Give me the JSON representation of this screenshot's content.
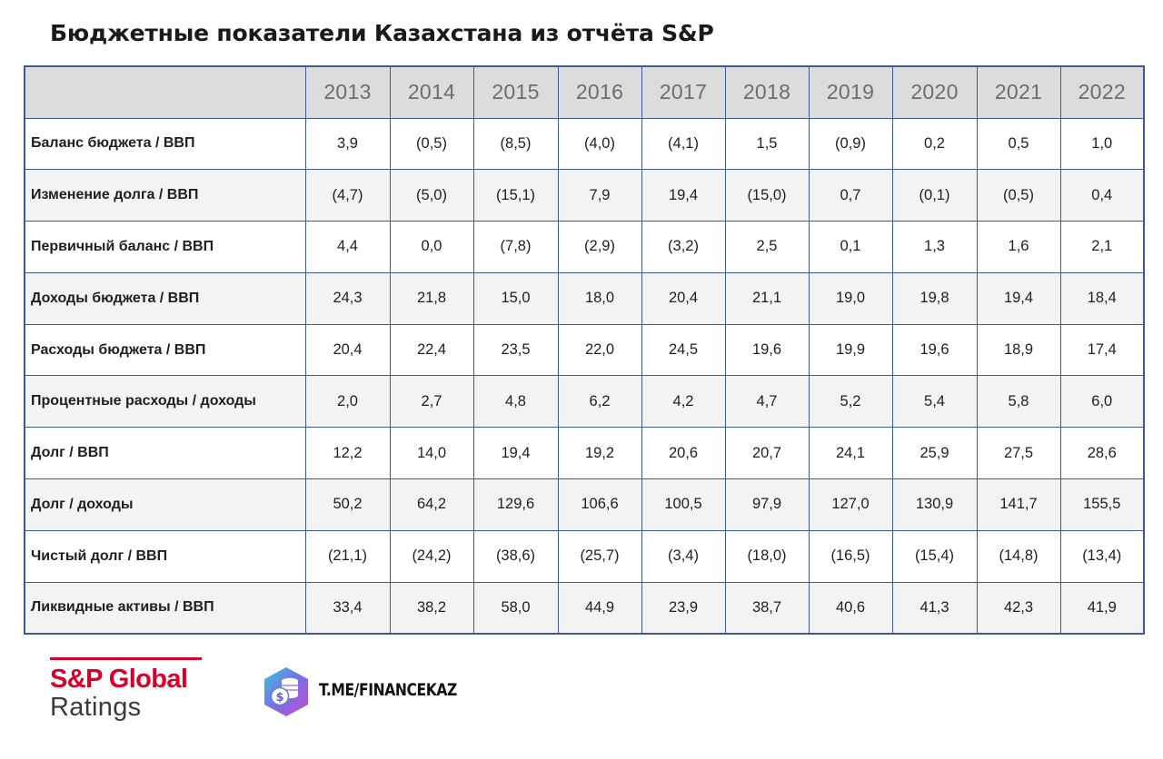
{
  "title": "Бюджетные показатели Казахстана из отчёта S&P",
  "chart_data": {
    "type": "table",
    "title": "Бюджетные показатели Казахстана из отчёта S&P",
    "columns": [
      "2013",
      "2014",
      "2015",
      "2016",
      "2017",
      "2018",
      "2019",
      "2020",
      "2021",
      "2022"
    ],
    "rows": [
      {
        "label": "Баланс бюджета / ВВП",
        "values": [
          "3,9",
          "(0,5)",
          "(8,5)",
          "(4,0)",
          "(4,1)",
          "1,5",
          "(0,9)",
          "0,2",
          "0,5",
          "1,0"
        ]
      },
      {
        "label": "Изменение долга / ВВП",
        "values": [
          "(4,7)",
          "(5,0)",
          "(15,1)",
          "7,9",
          "19,4",
          "(15,0)",
          "0,7",
          "(0,1)",
          "(0,5)",
          "0,4"
        ]
      },
      {
        "label": "Первичный баланс / ВВП",
        "values": [
          "4,4",
          "0,0",
          "(7,8)",
          "(2,9)",
          "(3,2)",
          "2,5",
          "0,1",
          "1,3",
          "1,6",
          "2,1"
        ]
      },
      {
        "label": "Доходы бюджета / ВВП",
        "values": [
          "24,3",
          "21,8",
          "15,0",
          "18,0",
          "20,4",
          "21,1",
          "19,0",
          "19,8",
          "19,4",
          "18,4"
        ]
      },
      {
        "label": "Расходы бюджета / ВВП",
        "values": [
          "20,4",
          "22,4",
          "23,5",
          "22,0",
          "24,5",
          "19,6",
          "19,9",
          "19,6",
          "18,9",
          "17,4"
        ]
      },
      {
        "label": "Процентные расходы / доходы",
        "values": [
          "2,0",
          "2,7",
          "4,8",
          "6,2",
          "4,2",
          "4,7",
          "5,2",
          "5,4",
          "5,8",
          "6,0"
        ]
      },
      {
        "label": "Долг / ВВП",
        "values": [
          "12,2",
          "14,0",
          "19,4",
          "19,2",
          "20,6",
          "20,7",
          "24,1",
          "25,9",
          "27,5",
          "28,6"
        ]
      },
      {
        "label": "Долг / доходы",
        "values": [
          "50,2",
          "64,2",
          "129,6",
          "106,6",
          "100,5",
          "97,9",
          "127,0",
          "130,9",
          "141,7",
          "155,5"
        ]
      },
      {
        "label": "Чистый долг / ВВП",
        "values": [
          "(21,1)",
          "(24,2)",
          "(38,6)",
          "(25,7)",
          "(3,4)",
          "(18,0)",
          "(16,5)",
          "(15,4)",
          "(14,8)",
          "(13,4)"
        ]
      },
      {
        "label": "Ликвидные активы / ВВП",
        "values": [
          "33,4",
          "38,2",
          "58,0",
          "44,9",
          "23,9",
          "38,7",
          "40,6",
          "41,3",
          "42,3",
          "41,9"
        ]
      }
    ]
  },
  "footer": {
    "sp_logo_line1": "S&P Global",
    "sp_logo_line2": "Ratings",
    "channel": "T.ME/FINANCEKAZ",
    "channel_icon": "coin-stack-icon"
  },
  "colors": {
    "border": "#3e5a94",
    "header_bg": "#dcdcdc",
    "sp_red": "#d6002a"
  }
}
